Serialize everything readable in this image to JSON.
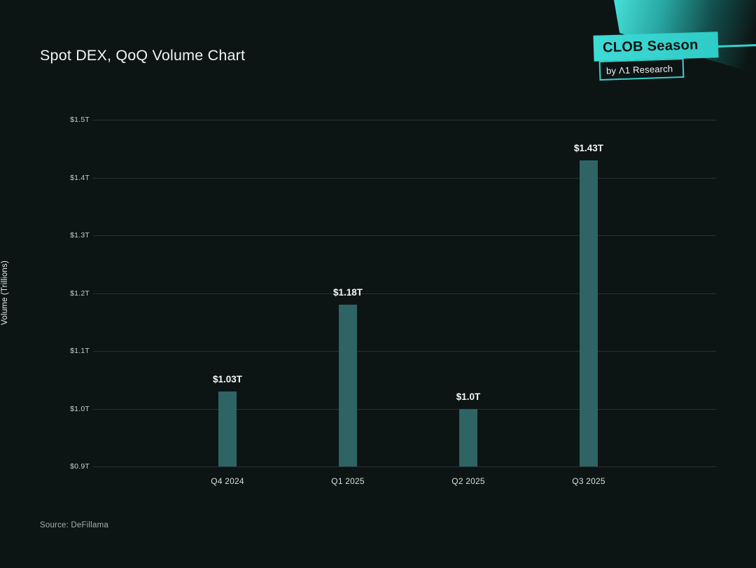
{
  "page": {
    "title": "Spot DEX, QoQ Volume Chart",
    "source": "Source: DeFillama"
  },
  "badge": {
    "primary": "CLOB Season",
    "secondary": "by Λ1 Research"
  },
  "colors": {
    "background": "#0c1514",
    "bar": "#2e6463",
    "accent": "#36d2ce",
    "gridline": "#273231",
    "ytick_text": "#c7cfce",
    "xtick_text": "#d9dfde",
    "data_label_text": "#f4f8f7",
    "source_text": "#a6afad"
  },
  "chart_data": {
    "type": "bar",
    "title": "Spot DEX, QoQ Volume Chart",
    "categories": [
      "Q4 2024",
      "Q1 2025",
      "Q2 2025",
      "Q3 2025"
    ],
    "values": [
      1.03,
      1.18,
      1.0,
      1.43
    ],
    "value_labels": [
      "$1.03T",
      "$1.18T",
      "$1.0T",
      "$1.43T"
    ],
    "xlabel": "",
    "ylabel": "Volume (Trillions)",
    "ylim": [
      0.9,
      1.5
    ],
    "ytick_step": 0.1,
    "ytick_labels": [
      "$1.5T",
      "$1.4T",
      "$1.3T",
      "$1.2T",
      "$1.1T",
      "$1.0T",
      "$0.9T"
    ],
    "grid": true,
    "legend": false,
    "source": "Source: DeFillama"
  }
}
